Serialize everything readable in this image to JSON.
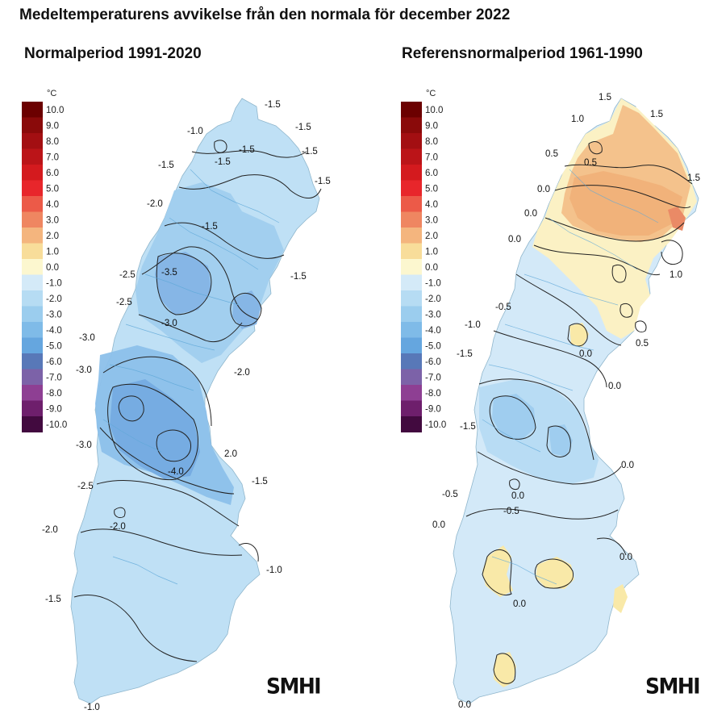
{
  "title": "Medeltemperaturens avvikelse från den normala för december 2022",
  "unit": "°C",
  "legend": [
    {
      "label": "10.0",
      "color": "#6b0000"
    },
    {
      "label": "9.0",
      "color": "#8a0a0a"
    },
    {
      "label": "8.0",
      "color": "#a30f12"
    },
    {
      "label": "7.0",
      "color": "#bb1418"
    },
    {
      "label": "6.0",
      "color": "#d41a1e"
    },
    {
      "label": "5.0",
      "color": "#e8262b"
    },
    {
      "label": "4.0",
      "color": "#ec5a48"
    },
    {
      "label": "3.0",
      "color": "#ef8661"
    },
    {
      "label": "2.0",
      "color": "#f4b57e"
    },
    {
      "label": "1.0",
      "color": "#f8dd9a"
    },
    {
      "label": "0.0",
      "color": "#fcf7cf"
    },
    {
      "label": "-1.0",
      "color": "#d4eaf8"
    },
    {
      "label": "-2.0",
      "color": "#b6dcf3"
    },
    {
      "label": "-3.0",
      "color": "#9bcdee"
    },
    {
      "label": "-4.0",
      "color": "#7fbbe8"
    },
    {
      "label": "-5.0",
      "color": "#65a6df"
    },
    {
      "label": "-6.0",
      "color": "#5878b8"
    },
    {
      "label": "-7.0",
      "color": "#7c62a8"
    },
    {
      "label": "-8.0",
      "color": "#8e3f93"
    },
    {
      "label": "-9.0",
      "color": "#6e1f6c"
    },
    {
      "label": "-10.0",
      "color": "#420a3f"
    }
  ],
  "panels": [
    {
      "subtitle": "Normalperiod 1991-2020",
      "logo": "SMHI",
      "contour_labels": [
        "-1.5",
        "-1.5",
        "-1.0",
        "-1.5",
        "-1.5",
        "-1.5",
        "-1.5",
        "-1.5",
        "-2.0",
        "-1.5",
        "-1.5",
        "-2.5",
        "-3.5",
        "-2.5",
        "-3.0",
        "-3.0",
        "-2.0",
        "-3.0",
        "-3.0",
        "-4.0",
        "2.0",
        "-2.5",
        "-1.5",
        "-2.0",
        "-2.0",
        "-1.0",
        "-1.5",
        "-1.0"
      ]
    },
    {
      "subtitle": "Referensnormalperiod 1961-1990",
      "logo": "SMHI",
      "contour_labels": [
        "1.5",
        "1.5",
        "1.0",
        "0.5",
        "0.5",
        "1.5",
        "0.0",
        "0.0",
        "0.0",
        "1.0",
        "-0.5",
        "-1.0",
        "0.5",
        "-1.5",
        "0.0",
        "0.0",
        "-1.5",
        "0.0",
        "-0.5",
        "0.0",
        "-0.5",
        "0.0",
        "0.0",
        "0.0"
      ]
    }
  ]
}
